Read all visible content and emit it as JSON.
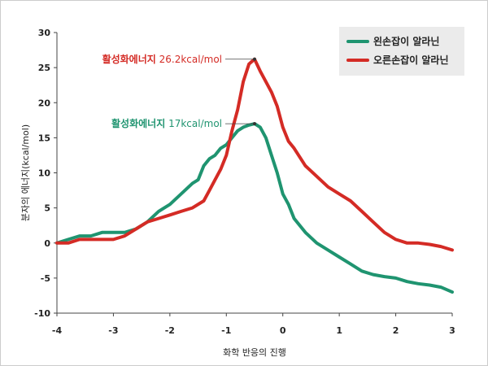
{
  "chart_data": {
    "type": "line",
    "title": "",
    "xlabel": "화학 반응의 진행",
    "ylabel": "분자의 에너지(kcal/mol)",
    "xlim": [
      -4,
      3
    ],
    "ylim": [
      -10,
      30
    ],
    "x_ticks": [
      "-4",
      "-3",
      "-2",
      "-1",
      "0",
      "1",
      "2",
      "3"
    ],
    "y_ticks": [
      "-10",
      "-5",
      "0",
      "5",
      "10",
      "15",
      "20",
      "25",
      "30"
    ],
    "grid": false,
    "legend_position": "top-right",
    "series": [
      {
        "name": "왼손잡이 알라닌",
        "color": "#1f9470",
        "points": [
          [
            -4.0,
            0.0
          ],
          [
            -3.8,
            0.5
          ],
          [
            -3.6,
            1.0
          ],
          [
            -3.4,
            1.0
          ],
          [
            -3.2,
            1.5
          ],
          [
            -3.0,
            1.5
          ],
          [
            -2.8,
            1.5
          ],
          [
            -2.6,
            2.0
          ],
          [
            -2.4,
            3.0
          ],
          [
            -2.2,
            4.5
          ],
          [
            -2.0,
            5.5
          ],
          [
            -1.8,
            7.0
          ],
          [
            -1.6,
            8.5
          ],
          [
            -1.5,
            9.0
          ],
          [
            -1.4,
            11.0
          ],
          [
            -1.3,
            12.0
          ],
          [
            -1.2,
            12.5
          ],
          [
            -1.1,
            13.5
          ],
          [
            -1.0,
            14.0
          ],
          [
            -0.9,
            15.0
          ],
          [
            -0.8,
            16.0
          ],
          [
            -0.7,
            16.5
          ],
          [
            -0.6,
            16.8
          ],
          [
            -0.5,
            17.0
          ],
          [
            -0.4,
            16.5
          ],
          [
            -0.3,
            15.0
          ],
          [
            -0.2,
            12.5
          ],
          [
            -0.1,
            10.0
          ],
          [
            0.0,
            7.0
          ],
          [
            0.1,
            5.5
          ],
          [
            0.2,
            3.5
          ],
          [
            0.4,
            1.5
          ],
          [
            0.6,
            0.0
          ],
          [
            0.8,
            -1.0
          ],
          [
            1.0,
            -2.0
          ],
          [
            1.2,
            -3.0
          ],
          [
            1.4,
            -4.0
          ],
          [
            1.6,
            -4.5
          ],
          [
            1.8,
            -4.8
          ],
          [
            2.0,
            -5.0
          ],
          [
            2.2,
            -5.5
          ],
          [
            2.4,
            -5.8
          ],
          [
            2.6,
            -6.0
          ],
          [
            2.8,
            -6.3
          ],
          [
            3.0,
            -7.0
          ]
        ]
      },
      {
        "name": "오른손잡이 알라닌",
        "color": "#d42b25",
        "points": [
          [
            -4.0,
            0.0
          ],
          [
            -3.8,
            0.0
          ],
          [
            -3.6,
            0.5
          ],
          [
            -3.4,
            0.5
          ],
          [
            -3.2,
            0.5
          ],
          [
            -3.0,
            0.5
          ],
          [
            -2.8,
            1.0
          ],
          [
            -2.6,
            2.0
          ],
          [
            -2.4,
            3.0
          ],
          [
            -2.2,
            3.5
          ],
          [
            -2.0,
            4.0
          ],
          [
            -1.8,
            4.5
          ],
          [
            -1.6,
            5.0
          ],
          [
            -1.4,
            6.0
          ],
          [
            -1.3,
            7.5
          ],
          [
            -1.2,
            9.0
          ],
          [
            -1.1,
            10.5
          ],
          [
            -1.0,
            12.5
          ],
          [
            -0.9,
            16.0
          ],
          [
            -0.8,
            19.0
          ],
          [
            -0.7,
            23.0
          ],
          [
            -0.6,
            25.5
          ],
          [
            -0.5,
            26.2
          ],
          [
            -0.4,
            24.5
          ],
          [
            -0.3,
            23.0
          ],
          [
            -0.2,
            21.5
          ],
          [
            -0.1,
            19.5
          ],
          [
            0.0,
            16.5
          ],
          [
            0.1,
            14.5
          ],
          [
            0.2,
            13.5
          ],
          [
            0.4,
            11.0
          ],
          [
            0.6,
            9.5
          ],
          [
            0.8,
            8.0
          ],
          [
            1.0,
            7.0
          ],
          [
            1.2,
            6.0
          ],
          [
            1.4,
            4.5
          ],
          [
            1.6,
            3.0
          ],
          [
            1.8,
            1.5
          ],
          [
            2.0,
            0.5
          ],
          [
            2.2,
            0.0
          ],
          [
            2.4,
            0.0
          ],
          [
            2.6,
            -0.2
          ],
          [
            2.8,
            -0.5
          ],
          [
            3.0,
            -1.0
          ]
        ]
      }
    ],
    "annotations": [
      {
        "bold": "활성화에너지",
        "rest": " 26.2kcal/mol",
        "x": -0.5,
        "y": 26.2,
        "color": "#d42b25",
        "series": 1
      },
      {
        "bold": "활성화에너지",
        "rest": " 17kcal/mol",
        "x": -0.5,
        "y": 17.0,
        "color": "#1f9470",
        "series": 0
      }
    ]
  }
}
